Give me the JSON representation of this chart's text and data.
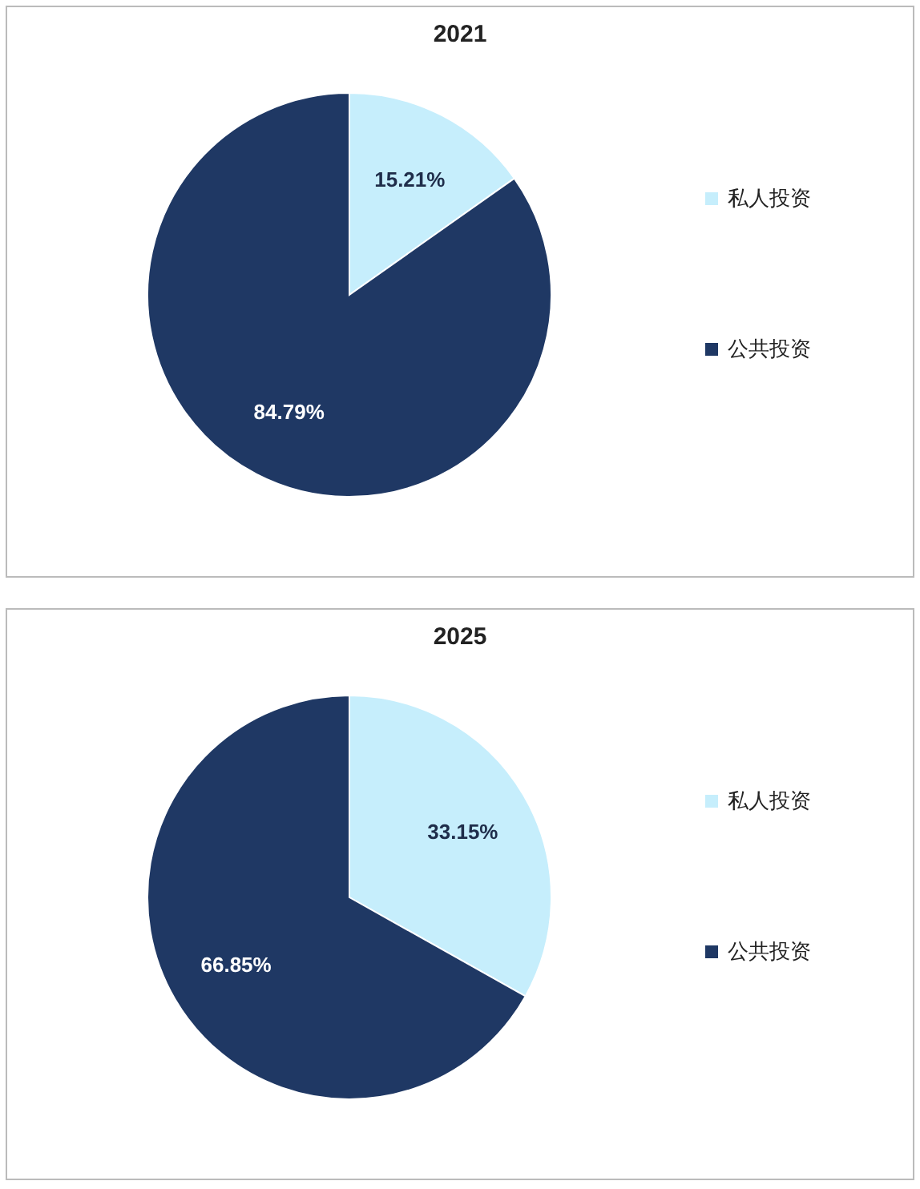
{
  "chart_data": [
    {
      "type": "pie",
      "title": "2021",
      "categories": [
        "私人投资",
        "公共投资"
      ],
      "values": [
        15.21,
        84.79
      ],
      "colors": [
        "#c6eefc",
        "#1f3864"
      ],
      "value_labels": [
        "15.21%",
        "84.79%"
      ],
      "legend": "right"
    },
    {
      "type": "pie",
      "title": "2025",
      "categories": [
        "私人投资",
        "公共投资"
      ],
      "values": [
        33.15,
        66.85
      ],
      "colors": [
        "#c6eefc",
        "#1f3864"
      ],
      "value_labels": [
        "33.15%",
        "66.85%"
      ],
      "legend": "right"
    }
  ]
}
